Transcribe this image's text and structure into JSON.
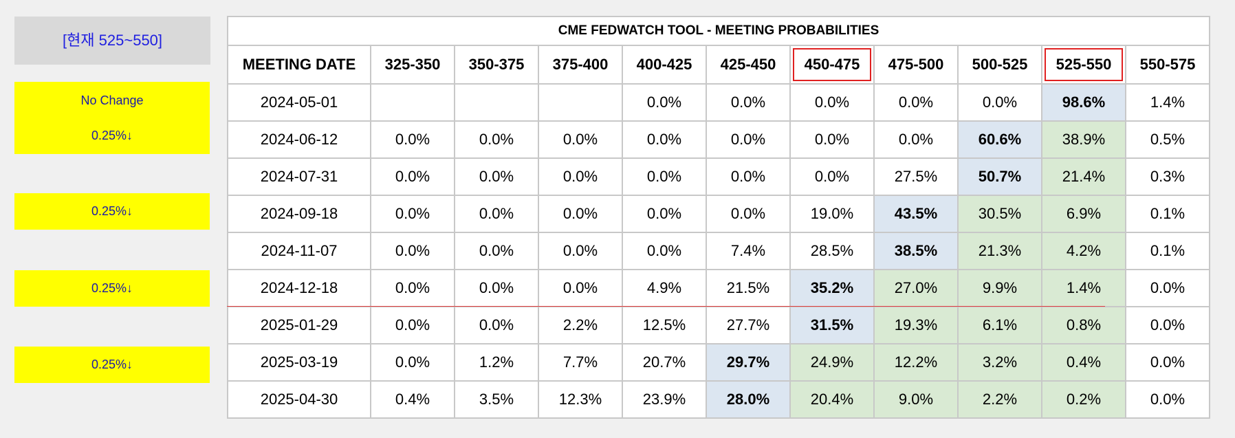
{
  "side": {
    "current": "[현재 525~550]",
    "box1_line1": "No Change",
    "box1_line2": "0.25%↓",
    "box2": "0.25%↓",
    "box3": "0.25%↓",
    "box4": "0.25%↓"
  },
  "table": {
    "title": "CME FEDWATCH TOOL - MEETING PROBABILITIES",
    "headers": [
      "MEETING DATE",
      "325-350",
      "350-375",
      "375-400",
      "400-425",
      "425-450",
      "450-475",
      "475-500",
      "500-525",
      "525-550",
      "550-575"
    ],
    "highlighted_headers": [
      "450-475",
      "525-550"
    ],
    "rows": [
      {
        "cells": [
          "2024-05-01",
          "",
          "",
          "",
          "0.0%",
          "0.0%",
          "0.0%",
          "0.0%",
          "0.0%",
          "98.6%",
          "1.4%"
        ],
        "max_col": 9,
        "green": []
      },
      {
        "cells": [
          "2024-06-12",
          "0.0%",
          "0.0%",
          "0.0%",
          "0.0%",
          "0.0%",
          "0.0%",
          "0.0%",
          "60.6%",
          "38.9%",
          "0.5%"
        ],
        "max_col": 8,
        "green": [
          9
        ]
      },
      {
        "cells": [
          "2024-07-31",
          "0.0%",
          "0.0%",
          "0.0%",
          "0.0%",
          "0.0%",
          "0.0%",
          "27.5%",
          "50.7%",
          "21.4%",
          "0.3%"
        ],
        "max_col": 8,
        "green": [
          9
        ]
      },
      {
        "cells": [
          "2024-09-18",
          "0.0%",
          "0.0%",
          "0.0%",
          "0.0%",
          "0.0%",
          "19.0%",
          "43.5%",
          "30.5%",
          "6.9%",
          "0.1%"
        ],
        "max_col": 7,
        "green": [
          8,
          9
        ]
      },
      {
        "cells": [
          "2024-11-07",
          "0.0%",
          "0.0%",
          "0.0%",
          "0.0%",
          "7.4%",
          "28.5%",
          "38.5%",
          "21.3%",
          "4.2%",
          "0.1%"
        ],
        "max_col": 7,
        "green": [
          8,
          9
        ]
      },
      {
        "cells": [
          "2024-12-18",
          "0.0%",
          "0.0%",
          "0.0%",
          "4.9%",
          "21.5%",
          "35.2%",
          "27.0%",
          "9.9%",
          "1.4%",
          "0.0%"
        ],
        "max_col": 6,
        "green": [
          7,
          8,
          9
        ]
      },
      {
        "cells": [
          "2025-01-29",
          "0.0%",
          "0.0%",
          "2.2%",
          "12.5%",
          "27.7%",
          "31.5%",
          "19.3%",
          "6.1%",
          "0.8%",
          "0.0%"
        ],
        "max_col": 6,
        "green": [
          7,
          8,
          9
        ]
      },
      {
        "cells": [
          "2025-03-19",
          "0.0%",
          "1.2%",
          "7.7%",
          "20.7%",
          "29.7%",
          "24.9%",
          "12.2%",
          "3.2%",
          "0.4%",
          "0.0%"
        ],
        "max_col": 5,
        "green": [
          6,
          7,
          8,
          9
        ]
      },
      {
        "cells": [
          "2025-04-30",
          "0.4%",
          "3.5%",
          "12.3%",
          "23.9%",
          "28.0%",
          "20.4%",
          "9.0%",
          "2.2%",
          "0.2%",
          "0.0%"
        ],
        "max_col": 5,
        "green": [
          6,
          7,
          8,
          9
        ]
      }
    ]
  },
  "colors": {
    "max_cell": "#dce6f1",
    "green_cell": "#d9ead3",
    "highlight_border": "#e02020",
    "yellow_box": "#ffff00"
  }
}
